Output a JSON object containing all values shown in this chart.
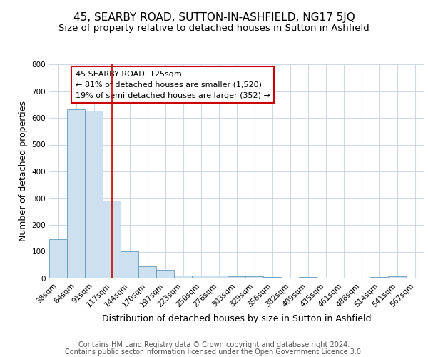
{
  "title": "45, SEARBY ROAD, SUTTON-IN-ASHFIELD, NG17 5JQ",
  "subtitle": "Size of property relative to detached houses in Sutton in Ashfield",
  "xlabel": "Distribution of detached houses by size in Sutton in Ashfield",
  "ylabel": "Number of detached properties",
  "categories": [
    "38sqm",
    "64sqm",
    "91sqm",
    "117sqm",
    "144sqm",
    "170sqm",
    "197sqm",
    "223sqm",
    "250sqm",
    "276sqm",
    "303sqm",
    "329sqm",
    "356sqm",
    "382sqm",
    "409sqm",
    "435sqm",
    "461sqm",
    "488sqm",
    "514sqm",
    "541sqm",
    "567sqm"
  ],
  "values": [
    148,
    633,
    626,
    290,
    102,
    45,
    31,
    10,
    10,
    10,
    8,
    8,
    5,
    0,
    5,
    0,
    0,
    0,
    5,
    8,
    0
  ],
  "bar_color": "#cce0f0",
  "bar_edge_color": "#6699bb",
  "marker_line_index": 3,
  "marker_line_color": "#cc0000",
  "annotation_line1": "45 SEARBY ROAD: 125sqm",
  "annotation_line2": "← 81% of detached houses are smaller (1,520)",
  "annotation_line3": "19% of semi-detached houses are larger (352) →",
  "annotation_box_color": "#cc0000",
  "footer_line1": "Contains HM Land Registry data © Crown copyright and database right 2024.",
  "footer_line2": "Contains public sector information licensed under the Open Government Licence 3.0.",
  "ylim": [
    0,
    800
  ],
  "yticks": [
    0,
    100,
    200,
    300,
    400,
    500,
    600,
    700,
    800
  ],
  "fig_bg_color": "#ffffff",
  "plot_bg_color": "#ffffff",
  "grid_color": "#d0d8e8",
  "title_fontsize": 11,
  "subtitle_fontsize": 9.5,
  "axis_label_fontsize": 9,
  "tick_fontsize": 7.5,
  "footer_fontsize": 7
}
